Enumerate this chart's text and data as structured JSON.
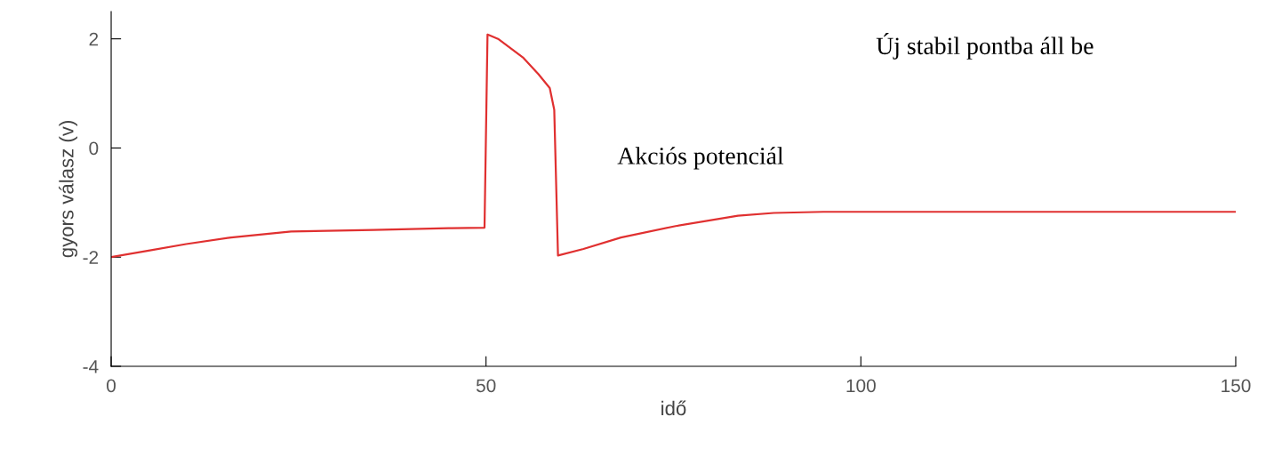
{
  "chart_data": {
    "type": "line",
    "xlabel": "idő",
    "ylabel": "gyors válasz (v)",
    "x": [
      0,
      5,
      10,
      16,
      24,
      35,
      45,
      49.8,
      50.2,
      51.6,
      55,
      57,
      58.5,
      59.1,
      59.6,
      63,
      68,
      75.3,
      83.6,
      88.4,
      95,
      110,
      130,
      150
    ],
    "series": [
      {
        "color": "#e03030",
        "values": [
          -2.0,
          -1.88,
          -1.76,
          -1.64,
          -1.53,
          -1.5,
          -1.47,
          -1.46,
          2.08,
          2.0,
          1.65,
          1.35,
          1.1,
          0.7,
          -1.97,
          -1.85,
          -1.64,
          -1.43,
          -1.24,
          -1.19,
          -1.17,
          -1.17,
          -1.17,
          -1.17
        ]
      }
    ],
    "xlim": [
      0,
      150
    ],
    "ylim": [
      -4,
      2.5
    ],
    "xticks": [
      0,
      50,
      100,
      150
    ],
    "yticks": [
      -4,
      -2,
      0,
      2
    ],
    "grid": false,
    "legend": false,
    "annotations": [
      "Akciós potenciál",
      "Új stabil pontba áll be"
    ]
  }
}
